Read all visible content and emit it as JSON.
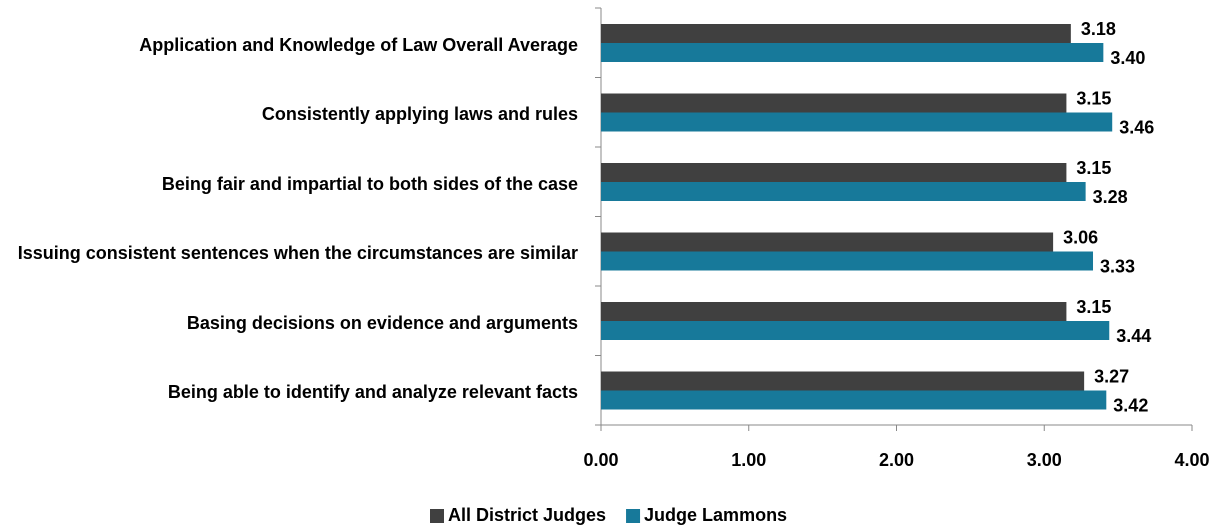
{
  "chart_data": {
    "type": "bar",
    "orientation": "horizontal",
    "categories": [
      "Application and Knowledge of Law Overall Average",
      "Consistently applying laws and rules",
      "Being fair and impartial to both sides of the case",
      "Issuing consistent sentences when the circumstances are similar",
      "Basing decisions on evidence and arguments",
      "Being able to identify and analyze relevant facts"
    ],
    "series": [
      {
        "name": "All District Judges",
        "color": "#404040",
        "values": [
          3.18,
          3.15,
          3.15,
          3.06,
          3.15,
          3.27
        ],
        "value_labels": [
          "3.18",
          "3.15",
          "3.15",
          "3.06",
          "3.15",
          "3.27"
        ]
      },
      {
        "name": "Judge Lammons",
        "color": "#17799a",
        "values": [
          3.4,
          3.46,
          3.28,
          3.33,
          3.44,
          3.42
        ],
        "value_labels": [
          "3.40",
          "3.46",
          "3.28",
          "3.33",
          "3.44",
          "3.42"
        ]
      }
    ],
    "xlim": [
      0,
      4
    ],
    "xticks": [
      {
        "value": 0,
        "label": "0.00"
      },
      {
        "value": 1,
        "label": "1.00"
      },
      {
        "value": 2,
        "label": "2.00"
      },
      {
        "value": 3,
        "label": "3.00"
      },
      {
        "value": 4,
        "label": "4.00"
      }
    ],
    "legend": "bottom"
  }
}
